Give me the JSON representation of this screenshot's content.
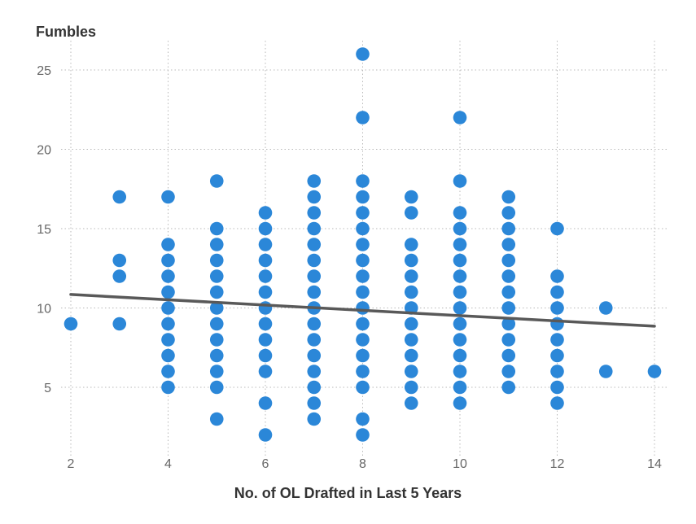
{
  "chart_data": {
    "type": "scatter",
    "ylabel": "Fumbles",
    "xlabel": "No. of OL Drafted in Last 5 Years",
    "xlim": [
      2,
      14
    ],
    "ylim": [
      1.6,
      26.8
    ],
    "xticks": [
      2,
      4,
      6,
      8,
      10,
      12,
      14
    ],
    "yticks": [
      5,
      10,
      15,
      20,
      25
    ],
    "grid": "dotted",
    "points": [
      [
        2,
        9
      ],
      [
        3,
        9
      ],
      [
        3,
        12
      ],
      [
        3,
        13
      ],
      [
        3,
        17
      ],
      [
        4,
        5
      ],
      [
        4,
        6
      ],
      [
        4,
        7
      ],
      [
        4,
        8
      ],
      [
        4,
        9
      ],
      [
        4,
        10
      ],
      [
        4,
        11
      ],
      [
        4,
        12
      ],
      [
        4,
        13
      ],
      [
        4,
        14
      ],
      [
        4,
        17
      ],
      [
        5,
        3
      ],
      [
        5,
        5
      ],
      [
        5,
        6
      ],
      [
        5,
        7
      ],
      [
        5,
        8
      ],
      [
        5,
        9
      ],
      [
        5,
        10
      ],
      [
        5,
        11
      ],
      [
        5,
        12
      ],
      [
        5,
        13
      ],
      [
        5,
        14
      ],
      [
        5,
        15
      ],
      [
        5,
        18
      ],
      [
        6,
        2
      ],
      [
        6,
        4
      ],
      [
        6,
        6
      ],
      [
        6,
        7
      ],
      [
        6,
        8
      ],
      [
        6,
        9
      ],
      [
        6,
        10
      ],
      [
        6,
        11
      ],
      [
        6,
        12
      ],
      [
        6,
        13
      ],
      [
        6,
        14
      ],
      [
        6,
        15
      ],
      [
        6,
        16
      ],
      [
        7,
        3
      ],
      [
        7,
        4
      ],
      [
        7,
        5
      ],
      [
        7,
        6
      ],
      [
        7,
        7
      ],
      [
        7,
        8
      ],
      [
        7,
        9
      ],
      [
        7,
        10
      ],
      [
        7,
        11
      ],
      [
        7,
        12
      ],
      [
        7,
        13
      ],
      [
        7,
        14
      ],
      [
        7,
        15
      ],
      [
        7,
        16
      ],
      [
        7,
        17
      ],
      [
        7,
        18
      ],
      [
        8,
        2
      ],
      [
        8,
        3
      ],
      [
        8,
        5
      ],
      [
        8,
        6
      ],
      [
        8,
        7
      ],
      [
        8,
        8
      ],
      [
        8,
        9
      ],
      [
        8,
        10
      ],
      [
        8,
        11
      ],
      [
        8,
        12
      ],
      [
        8,
        13
      ],
      [
        8,
        14
      ],
      [
        8,
        15
      ],
      [
        8,
        16
      ],
      [
        8,
        17
      ],
      [
        8,
        18
      ],
      [
        8,
        22
      ],
      [
        8,
        26
      ],
      [
        9,
        4
      ],
      [
        9,
        5
      ],
      [
        9,
        6
      ],
      [
        9,
        7
      ],
      [
        9,
        8
      ],
      [
        9,
        9
      ],
      [
        9,
        10
      ],
      [
        9,
        11
      ],
      [
        9,
        12
      ],
      [
        9,
        13
      ],
      [
        9,
        14
      ],
      [
        9,
        16
      ],
      [
        9,
        17
      ],
      [
        10,
        4
      ],
      [
        10,
        5
      ],
      [
        10,
        6
      ],
      [
        10,
        7
      ],
      [
        10,
        8
      ],
      [
        10,
        9
      ],
      [
        10,
        10
      ],
      [
        10,
        11
      ],
      [
        10,
        12
      ],
      [
        10,
        13
      ],
      [
        10,
        14
      ],
      [
        10,
        15
      ],
      [
        10,
        16
      ],
      [
        10,
        18
      ],
      [
        10,
        22
      ],
      [
        11,
        5
      ],
      [
        11,
        6
      ],
      [
        11,
        7
      ],
      [
        11,
        8
      ],
      [
        11,
        9
      ],
      [
        11,
        10
      ],
      [
        11,
        11
      ],
      [
        11,
        12
      ],
      [
        11,
        13
      ],
      [
        11,
        14
      ],
      [
        11,
        15
      ],
      [
        11,
        16
      ],
      [
        11,
        17
      ],
      [
        12,
        4
      ],
      [
        12,
        5
      ],
      [
        12,
        6
      ],
      [
        12,
        7
      ],
      [
        12,
        8
      ],
      [
        12,
        9
      ],
      [
        12,
        10
      ],
      [
        12,
        11
      ],
      [
        12,
        12
      ],
      [
        12,
        15
      ],
      [
        13,
        6
      ],
      [
        13,
        10
      ],
      [
        14,
        6
      ]
    ],
    "trendline": {
      "x": [
        2,
        14
      ],
      "y": [
        10.85,
        8.85
      ]
    },
    "colors": {
      "point": "#2b87d8",
      "trendline": "#595959",
      "grid": "#b8b8b8",
      "tick_text": "#666666",
      "label_text": "#333333"
    }
  }
}
